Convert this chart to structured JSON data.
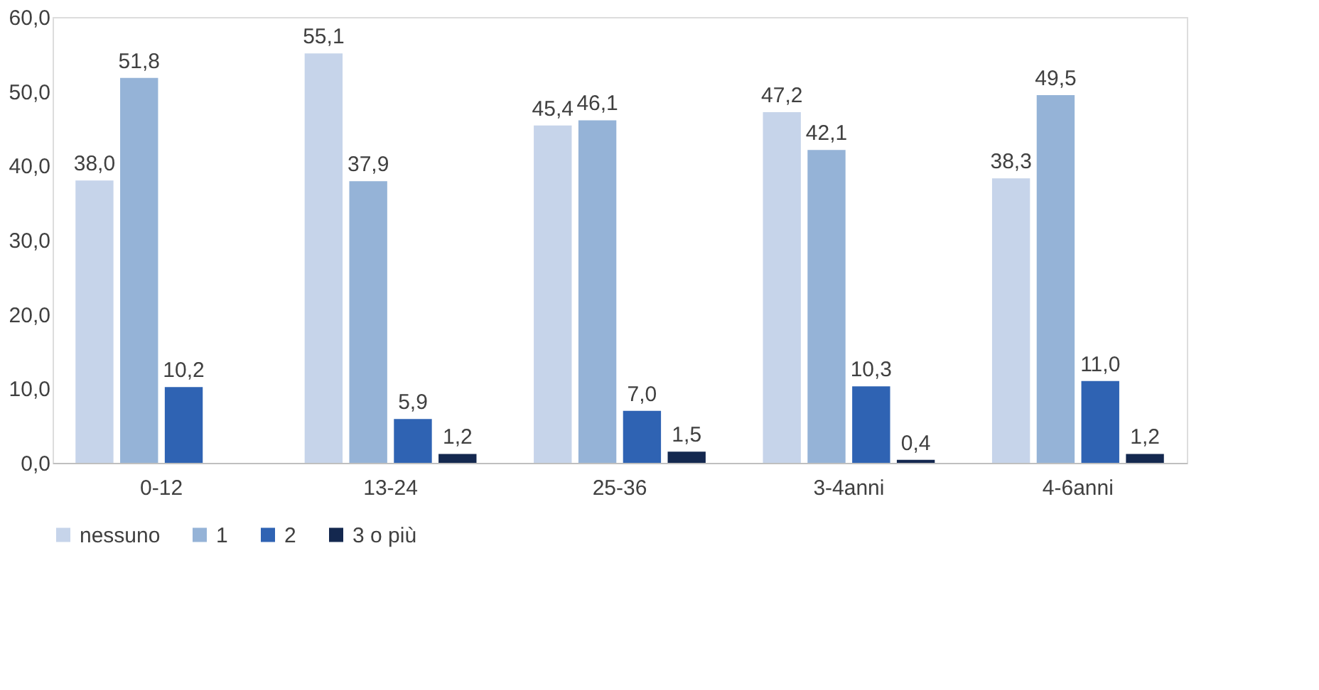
{
  "chart_data": {
    "type": "bar",
    "categories": [
      "0-12",
      "13-24",
      "25-36",
      "3-4anni",
      "4-6anni"
    ],
    "series": [
      {
        "name": "nessuno",
        "color": "#c6d4ea",
        "values": [
          38.0,
          55.1,
          45.4,
          47.2,
          38.3
        ],
        "value_labels": [
          "38,0",
          "55,1",
          "45,4",
          "47,2",
          "38,3"
        ]
      },
      {
        "name": "1",
        "color": "#95b3d7",
        "values": [
          51.8,
          37.9,
          46.1,
          42.1,
          49.5
        ],
        "value_labels": [
          "51,8",
          "37,9",
          "46,1",
          "42,1",
          "49,5"
        ]
      },
      {
        "name": "2",
        "color": "#2f63b3",
        "values": [
          10.2,
          5.9,
          7.0,
          10.3,
          11.0
        ],
        "value_labels": [
          "10,2",
          "5,9",
          "7,0",
          "10,3",
          "11,0"
        ]
      },
      {
        "name": "3 o più",
        "color": "#14284f",
        "values": [
          null,
          1.2,
          1.5,
          0.4,
          1.2
        ],
        "value_labels": [
          null,
          "1,2",
          "1,5",
          "0,4",
          "1,2"
        ]
      }
    ],
    "ylim": [
      0,
      60
    ],
    "yticks": [
      {
        "value": 0,
        "label": "0,0"
      },
      {
        "value": 10,
        "label": "10,0"
      },
      {
        "value": 20,
        "label": "20,0"
      },
      {
        "value": 30,
        "label": "30,0"
      },
      {
        "value": 40,
        "label": "40,0"
      },
      {
        "value": 50,
        "label": "50,0"
      },
      {
        "value": 60,
        "label": "60,0"
      }
    ],
    "grid": false,
    "legend": "bottom"
  }
}
